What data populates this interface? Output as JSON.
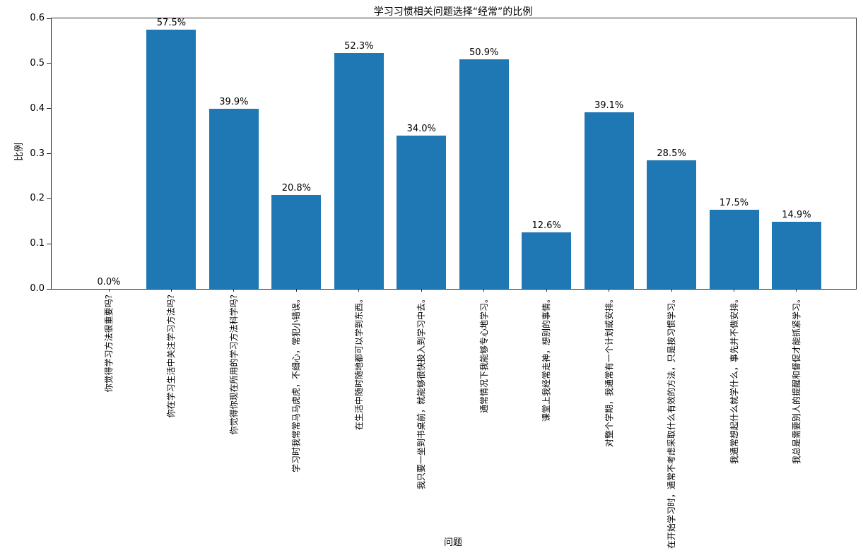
{
  "chart_data": {
    "type": "bar",
    "title": "学习习惯相关问题选择“经常”的比例",
    "xlabel": "问题",
    "ylabel": "比例",
    "ylim": [
      0,
      0.6
    ],
    "yticks": [
      0.0,
      0.1,
      0.2,
      0.3,
      0.4,
      0.5,
      0.6
    ],
    "ytick_labels": [
      "0.0",
      "0.1",
      "0.2",
      "0.3",
      "0.4",
      "0.5",
      "0.6"
    ],
    "grid": false,
    "legend": null,
    "bar_color": "#1f77b4",
    "categories": [
      "你觉得学习方法很重要吗?",
      "你在学习生活中关注学习方法吗?",
      "你觉得你现在所用的学习方法科学吗?",
      "学习时我常常马马虎虎，不细心，常犯小错误。",
      "在生活中随时随地都可以学到东西。",
      "我只要一坐到书桌前，就能够很快投入到学习中去。",
      "通常情况下我能够专心地学习。",
      "课堂上我经常走神，想别的事情。",
      "对整个学期，我通常有一个计划或安排。",
      "在开始学习时，通常不考虑采取什么有效的方法，只是按习惯学习。",
      "我通常想起什么就学什么，事先并不做安排。",
      "我总是需要别人的提醒和督促才能抓紧学习。"
    ],
    "values": [
      0.0,
      0.575,
      0.399,
      0.208,
      0.523,
      0.34,
      0.509,
      0.126,
      0.391,
      0.285,
      0.175,
      0.149
    ],
    "value_labels": [
      "0.0%",
      "57.5%",
      "39.9%",
      "20.8%",
      "52.3%",
      "34.0%",
      "50.9%",
      "12.6%",
      "39.1%",
      "28.5%",
      "17.5%",
      "14.9%"
    ]
  }
}
